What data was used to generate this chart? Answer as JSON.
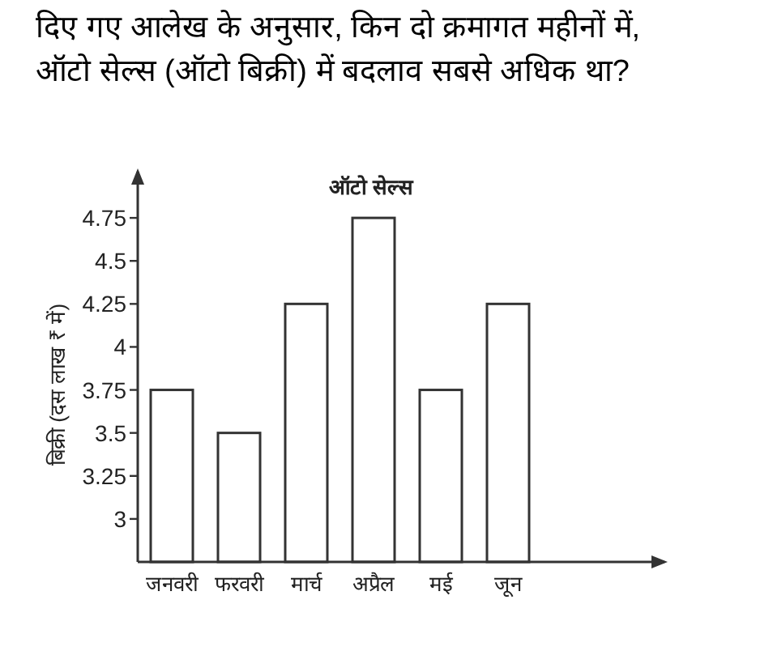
{
  "chart_data": {
    "type": "bar",
    "title": "ऑटो सेल्स",
    "annotations": [
      "दिए गए आलेख के अनुसार, किन दो क्रमागत महीनों में, ऑटो सेल्स (ऑटो बिक्री) में बदलाव सबसे अधिक था?"
    ],
    "ylabel": "बिक्री (दस लाख ₹ में)",
    "categories": [
      "जनवरी",
      "फरवरी",
      "मार्च",
      "अप्रैल",
      "मई",
      "जून"
    ],
    "values": [
      3.75,
      3.5,
      4.25,
      4.75,
      3.75,
      4.25
    ],
    "color": "#ffffff",
    "ylim": [
      2.75,
      5
    ],
    "yticks": [
      3,
      3.25,
      3.5,
      3.75,
      4,
      4.25,
      4.5,
      4.75
    ],
    "grid": false
  }
}
